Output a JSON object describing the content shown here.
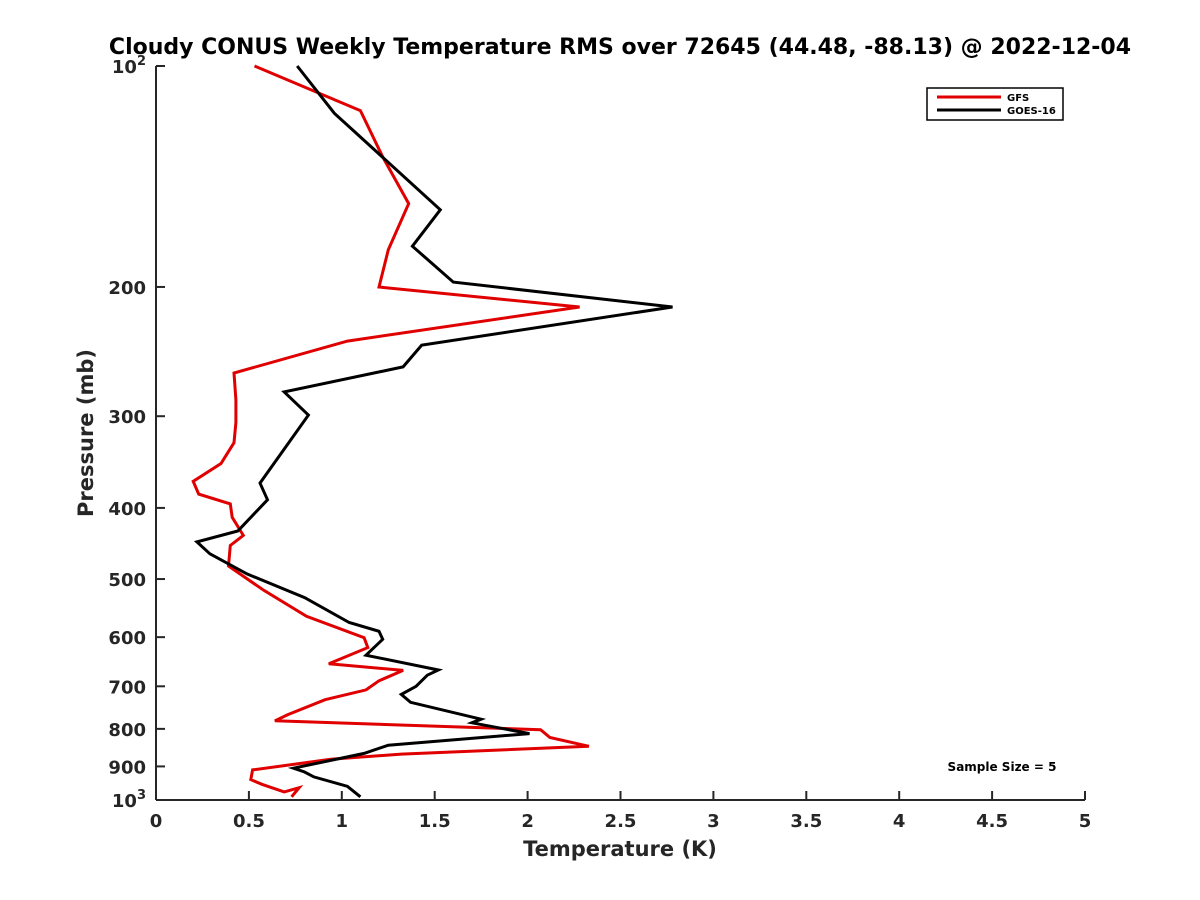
{
  "chart_data": {
    "type": "line",
    "title": "Cloudy CONUS Weekly Temperature RMS over 72645 (44.48, -88.13) @ 2022-12-04",
    "xlabel": "Temperature (K)",
    "ylabel": "Pressure (mb)",
    "xlim": [
      0,
      5
    ],
    "ylim": [
      100,
      1000
    ],
    "y_scale": "log",
    "y_reversed": true,
    "x_ticks": [
      0,
      0.5,
      1,
      1.5,
      2,
      2.5,
      3,
      3.5,
      4,
      4.5,
      5
    ],
    "x_tick_labels": [
      "0",
      "0.5",
      "1",
      "1.5",
      "2",
      "2.5",
      "3",
      "3.5",
      "4",
      "4.5",
      "5"
    ],
    "y_ticks": [
      100,
      200,
      300,
      400,
      500,
      600,
      700,
      800,
      900,
      1000
    ],
    "y_tick_labels": [
      {
        "base": "10",
        "exp": "2"
      },
      {
        "base": "200"
      },
      {
        "base": "300"
      },
      {
        "base": "400"
      },
      {
        "base": "500"
      },
      {
        "base": "600"
      },
      {
        "base": "700"
      },
      {
        "base": "800"
      },
      {
        "base": "900"
      },
      {
        "base": "10",
        "exp": "3"
      }
    ],
    "grid": false,
    "legend_position": "top-right",
    "annotation": "Sample Size = 5",
    "series": [
      {
        "name": "GFS",
        "color": "#e00000",
        "points": [
          [
            0.53,
            100
          ],
          [
            1.1,
            115
          ],
          [
            1.22,
            133
          ],
          [
            1.36,
            154
          ],
          [
            1.25,
            178
          ],
          [
            1.2,
            200
          ],
          [
            2.28,
            213
          ],
          [
            1.03,
            237
          ],
          [
            0.42,
            262
          ],
          [
            0.43,
            285
          ],
          [
            0.43,
            306
          ],
          [
            0.42,
            326
          ],
          [
            0.35,
            348
          ],
          [
            0.2,
            368
          ],
          [
            0.23,
            383
          ],
          [
            0.4,
            395
          ],
          [
            0.41,
            412
          ],
          [
            0.47,
            436
          ],
          [
            0.4,
            450
          ],
          [
            0.39,
            480
          ],
          [
            0.58,
            518
          ],
          [
            0.81,
            562
          ],
          [
            1.12,
            601
          ],
          [
            1.14,
            620
          ],
          [
            0.93,
            652
          ],
          [
            1.33,
            666
          ],
          [
            1.2,
            688
          ],
          [
            1.13,
            708
          ],
          [
            0.91,
            730
          ],
          [
            0.71,
            765
          ],
          [
            0.64,
            780
          ],
          [
            2.07,
            802
          ],
          [
            2.12,
            822
          ],
          [
            2.33,
            845
          ],
          [
            1.32,
            866
          ],
          [
            0.94,
            880
          ],
          [
            0.52,
            910
          ],
          [
            0.51,
            938
          ],
          [
            0.57,
            952
          ],
          [
            0.69,
            975
          ],
          [
            0.77,
            962
          ],
          [
            0.73,
            990
          ]
        ]
      },
      {
        "name": "GOES-16",
        "color": "#000000",
        "points": [
          [
            0.76,
            100
          ],
          [
            0.96,
            116
          ],
          [
            1.53,
            157
          ],
          [
            1.38,
            176
          ],
          [
            1.6,
            197
          ],
          [
            2.78,
            213
          ],
          [
            1.43,
            240
          ],
          [
            1.33,
            257
          ],
          [
            0.69,
            278
          ],
          [
            0.82,
            299
          ],
          [
            0.56,
            370
          ],
          [
            0.6,
            390
          ],
          [
            0.44,
            430
          ],
          [
            0.22,
            445
          ],
          [
            0.29,
            462
          ],
          [
            0.49,
            492
          ],
          [
            0.8,
            530
          ],
          [
            1.04,
            573
          ],
          [
            1.2,
            589
          ],
          [
            1.22,
            604
          ],
          [
            1.13,
            635
          ],
          [
            1.52,
            665
          ],
          [
            1.46,
            676
          ],
          [
            1.4,
            700
          ],
          [
            1.32,
            718
          ],
          [
            1.37,
            736
          ],
          [
            1.75,
            776
          ],
          [
            1.7,
            785
          ],
          [
            2.01,
            812
          ],
          [
            1.25,
            842
          ],
          [
            1.12,
            864
          ],
          [
            0.74,
            905
          ],
          [
            0.8,
            916
          ],
          [
            0.85,
            930
          ],
          [
            1.03,
            958
          ],
          [
            1.1,
            990
          ]
        ]
      }
    ]
  }
}
